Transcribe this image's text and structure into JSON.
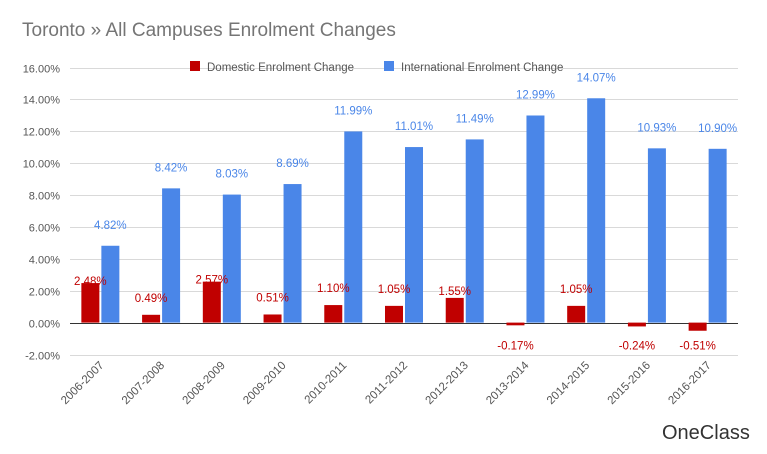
{
  "chart_data": {
    "type": "bar",
    "title": "Toronto » All Campuses Enrolment Changes",
    "categories": [
      "2006-2007",
      "2007-2008",
      "2008-2009",
      "2009-2010",
      "2010-2011",
      "2011-2012",
      "2012-2013",
      "2013-2014",
      "2014-2015",
      "2015-2016",
      "2016-2017"
    ],
    "series": [
      {
        "name": "Domestic Enrolment Change",
        "color": "#c00000",
        "values": [
          2.48,
          0.49,
          2.57,
          0.51,
          1.1,
          1.05,
          1.55,
          -0.17,
          1.05,
          -0.24,
          -0.51
        ],
        "labels": [
          "2.48%",
          "0.49%",
          "2.57%",
          "0.51%",
          "1.10%",
          "1.05%",
          "1.55%",
          "-0.17%",
          "1.05%",
          "-0.24%",
          "-0.51%"
        ]
      },
      {
        "name": "International Enrolment Change",
        "color": "#4a86e8",
        "values": [
          4.82,
          8.42,
          8.03,
          8.69,
          11.99,
          11.01,
          11.49,
          12.99,
          14.07,
          10.93,
          10.9
        ],
        "labels": [
          "4.82%",
          "8.42%",
          "8.03%",
          "8.69%",
          "11.99%",
          "11.01%",
          "11.49%",
          "12.99%",
          "14.07%",
          "10.93%",
          "10.90%"
        ]
      }
    ],
    "yticks": [
      -2,
      0,
      2,
      4,
      6,
      8,
      10,
      12,
      14,
      16
    ],
    "ytick_labels": [
      "-2.00%",
      "0.00%",
      "2.00%",
      "4.00%",
      "6.00%",
      "8.00%",
      "10.00%",
      "12.00%",
      "14.00%",
      "16.00%"
    ],
    "ylim": [
      -2,
      16
    ],
    "grid": true,
    "legend_position": "top"
  },
  "watermark": "OneClass"
}
